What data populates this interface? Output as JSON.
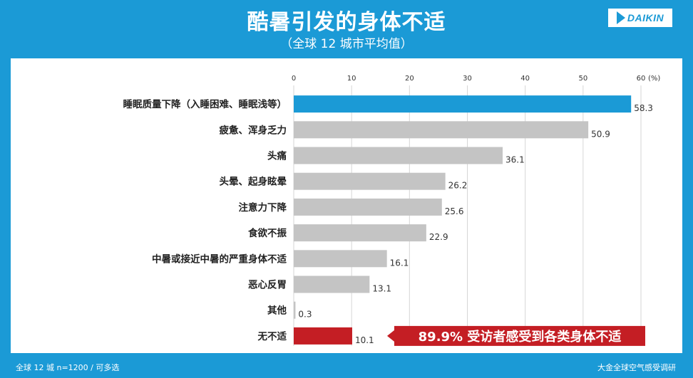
{
  "header": {
    "title": "酷暑引发的身体不适",
    "subtitle": "（全球 12 城市平均值）",
    "logo_text": "DAIKIN"
  },
  "footer": {
    "note": "全球 12 城 n=1200 / 可多选",
    "source": "大金全球空气感受调研"
  },
  "colors": {
    "background": "#1b9ad6",
    "highlight_bar": "#1b9ad6",
    "default_bar": "#c4c4c4",
    "none_bar": "#c41e24",
    "callout": "#c41e24"
  },
  "callout": {
    "text": "89.9% 受访者感受到各类身体不适"
  },
  "chart_data": {
    "type": "bar",
    "orientation": "horizontal",
    "unit": "(%)",
    "xlim": [
      0,
      60
    ],
    "ticks": [
      0,
      10,
      20,
      30,
      40,
      50,
      60
    ],
    "categories": [
      "睡眠质量下降（入睡困难、睡眠浅等）",
      "疲惫、浑身乏力",
      "头痛",
      "头晕、起身眩晕",
      "注意力下降",
      "食欲不振",
      "中暑或接近中暑的严重身体不适",
      "恶心反胃",
      "其他",
      "无不适"
    ],
    "values": [
      58.3,
      50.9,
      36.1,
      26.2,
      25.6,
      22.9,
      16.1,
      13.1,
      0.3,
      10.1
    ],
    "value_labels": [
      "58.3",
      "50.9",
      "36.1",
      "26.2",
      "25.6",
      "22.9",
      "16.1",
      "13.1",
      "0.3",
      "10.1"
    ],
    "bar_colors": [
      "#1b9ad6",
      "#c4c4c4",
      "#c4c4c4",
      "#c4c4c4",
      "#c4c4c4",
      "#c4c4c4",
      "#c4c4c4",
      "#c4c4c4",
      "#c4c4c4",
      "#c41e24"
    ],
    "grid": true
  }
}
